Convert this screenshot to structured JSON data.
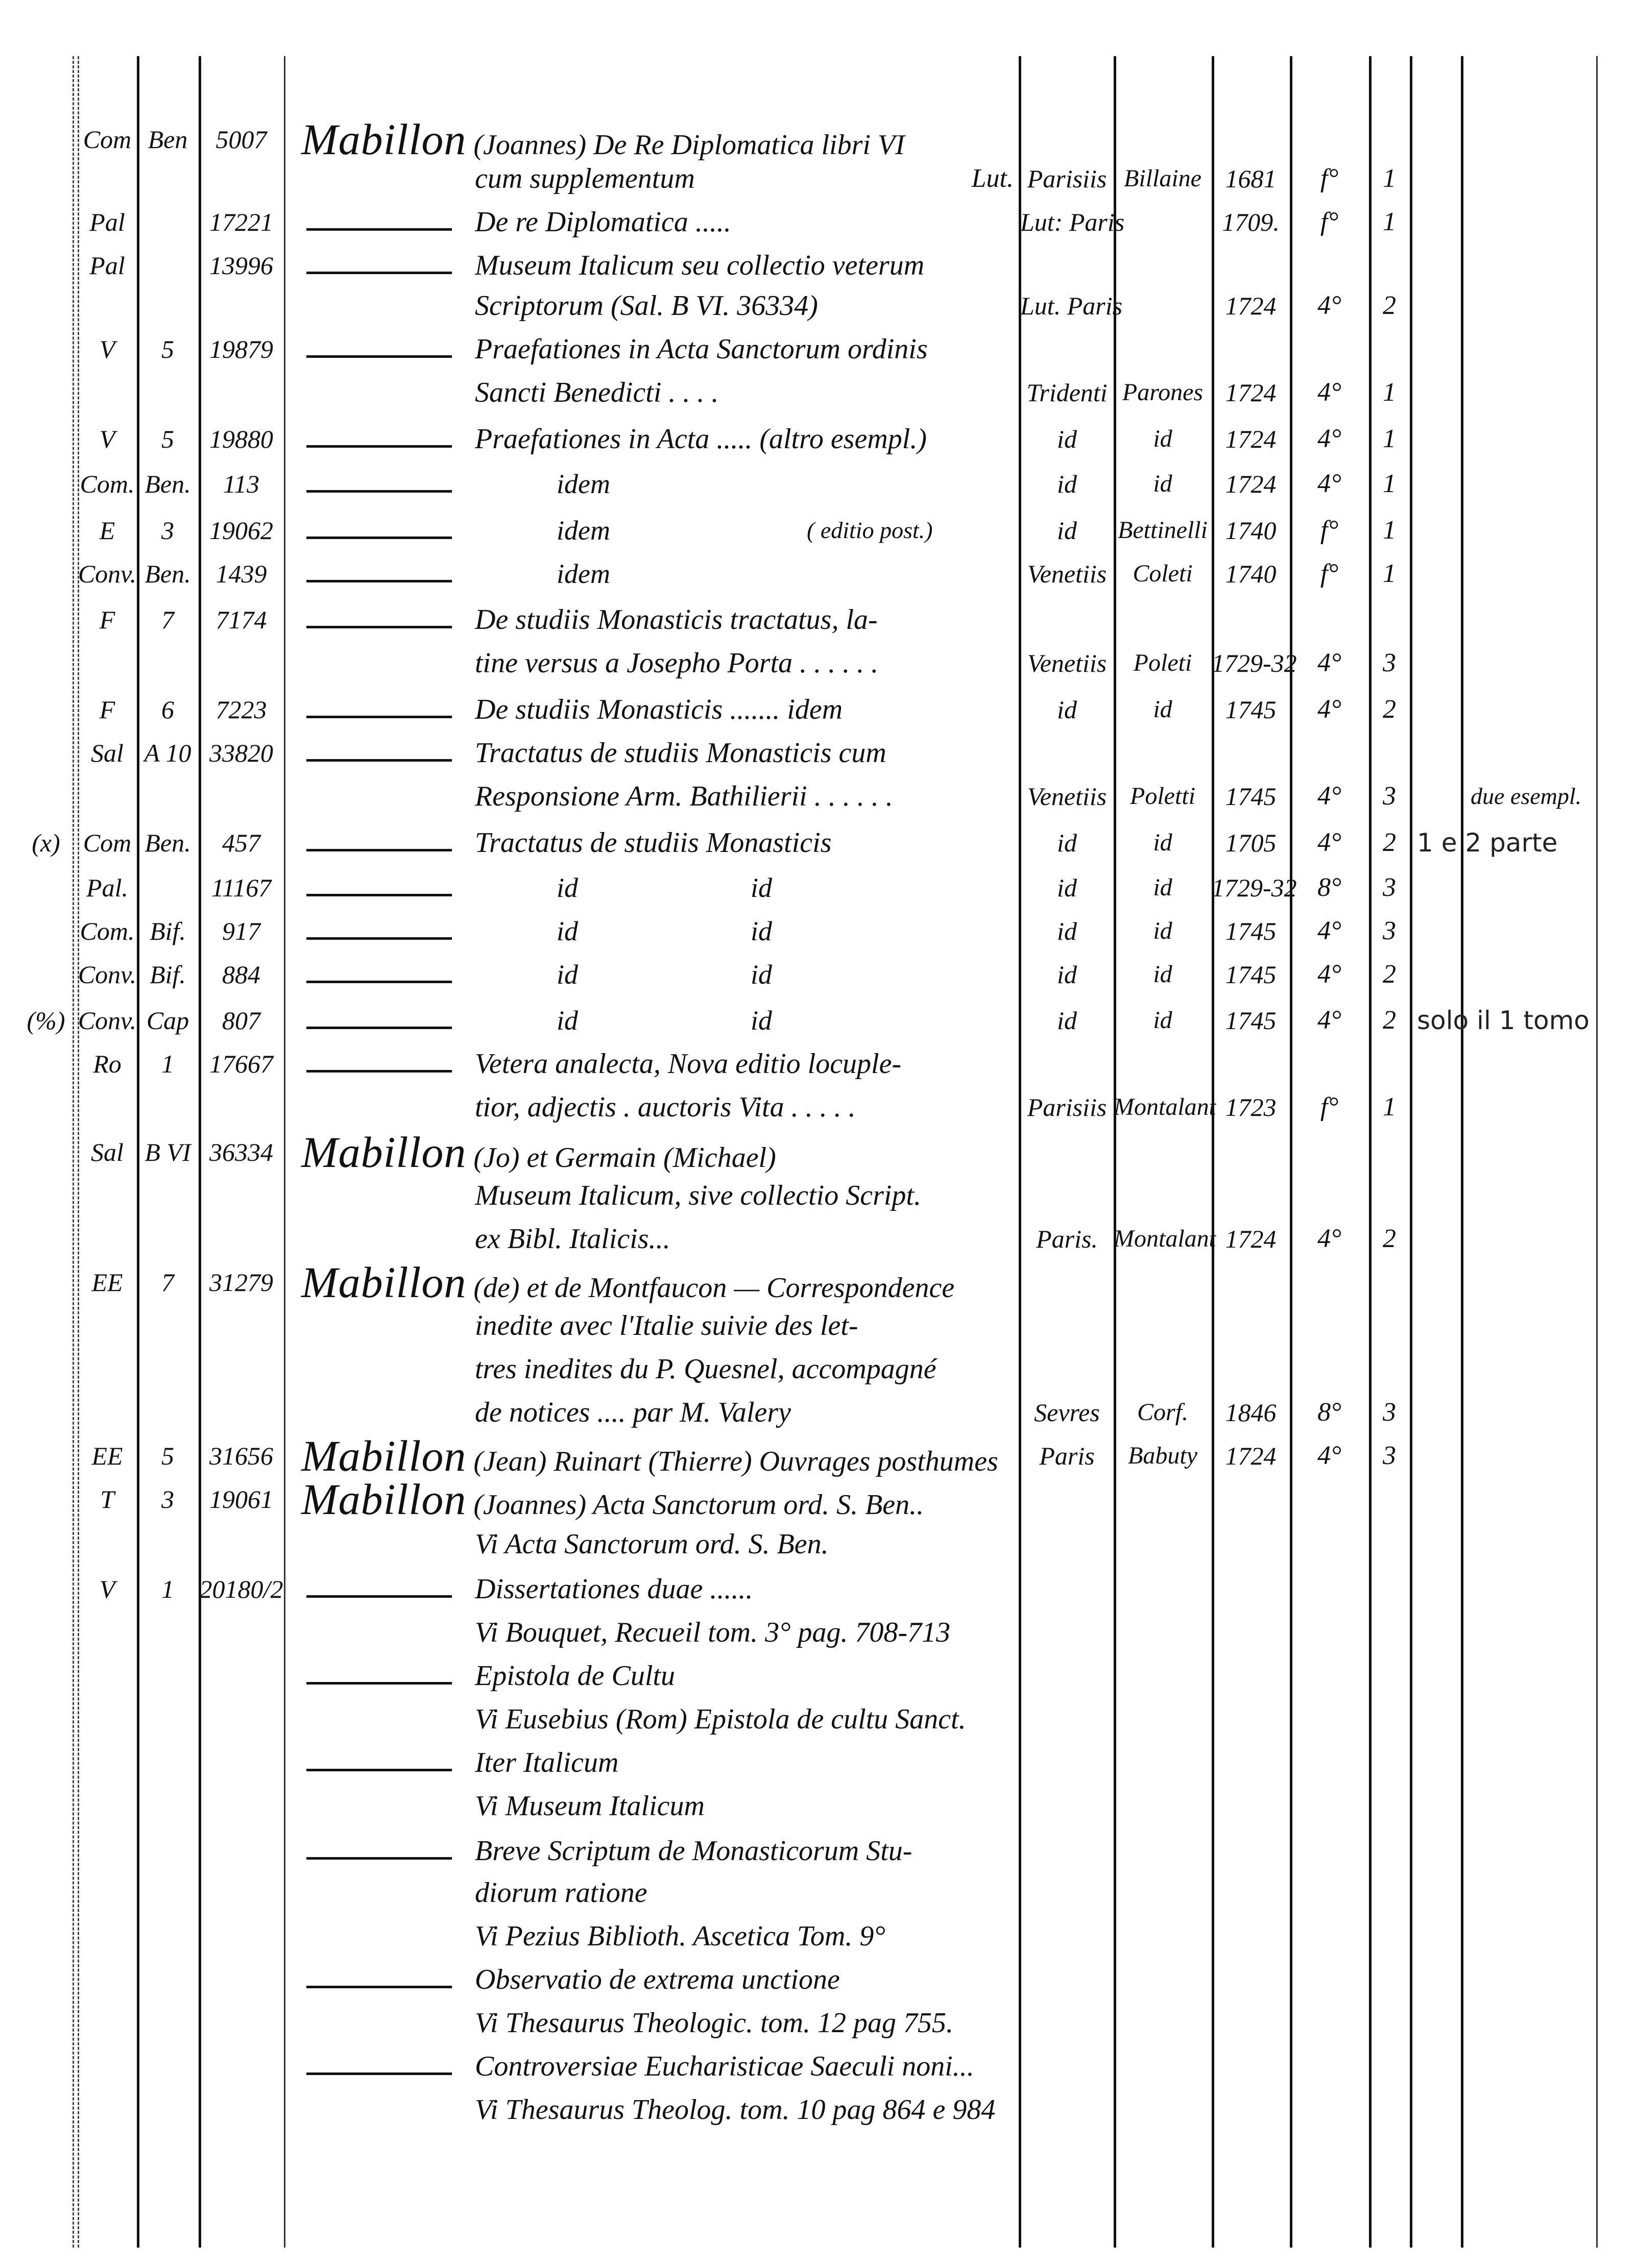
{
  "document": {
    "entries": [
      {
        "type": "heading",
        "shelf1": "Com",
        "shelf2": "Ben",
        "number": "5007",
        "author": "Mabillon",
        "title": "(Joannes) De Re Diplomatica libri VI"
      },
      {
        "type": "continuation",
        "title": "cum supplementum",
        "imprint": "Lut.",
        "place": "Parisiis",
        "printer": "Billaine",
        "year": "1681",
        "format": "f°",
        "vols": "1"
      },
      {
        "type": "dash",
        "shelf1": "Pal",
        "number": "17221",
        "title": "De re Diplomatica .....",
        "place": "Lut: Paris",
        "year": "1709.",
        "format": "f°",
        "vols": "1"
      },
      {
        "type": "dash",
        "shelf1": "Pal",
        "number": "13996",
        "title": "Museum Italicum seu collectio veterum"
      },
      {
        "type": "continuation",
        "title": "Scriptorum (Sal. B VI. 36334)",
        "place": "Lut. Paris",
        "year": "1724",
        "format": "4°",
        "vols": "2"
      },
      {
        "type": "dash",
        "shelf1": "V",
        "shelf2": "5",
        "number": "19879",
        "title": "Praefationes in Acta Sanctorum ordinis"
      },
      {
        "type": "continuation",
        "title": "Sancti Benedicti . . . .",
        "place": "Tridenti",
        "printer": "Parones",
        "year": "1724",
        "format": "4°",
        "vols": "1"
      },
      {
        "type": "dash",
        "shelf1": "V",
        "shelf2": "5",
        "number": "19880",
        "title": "Praefationes in Acta ..... (altro esempl.)",
        "place": "id",
        "printer": "id",
        "year": "1724",
        "format": "4°",
        "vols": "1"
      },
      {
        "type": "idem",
        "shelf1": "Com.",
        "shelf2": "Ben.",
        "number": "113",
        "title": "idem",
        "place": "id",
        "printer": "id",
        "year": "1724",
        "format": "4°",
        "vols": "1"
      },
      {
        "type": "idem",
        "shelf1": "E",
        "shelf2": "3",
        "number": "19062",
        "title": "idem",
        "sub": "( editio post.)",
        "place": "id",
        "printer": "Bettinelli",
        "year": "1740",
        "format": "f°",
        "vols": "1"
      },
      {
        "type": "idem",
        "shelf1": "Conv.",
        "shelf2": "Ben.",
        "number": "1439",
        "title": "idem",
        "place": "Venetiis",
        "printer": "Coleti",
        "year": "1740",
        "format": "f°",
        "vols": "1"
      },
      {
        "type": "dash",
        "shelf1": "F",
        "shelf2": "7",
        "number": "7174",
        "title": "De studiis Monasticis tractatus, la-"
      },
      {
        "type": "continuation",
        "title": "tine versus a Josepho Porta . . . . . .",
        "place": "Venetiis",
        "printer": "Poleti",
        "year": "1729-32",
        "format": "4°",
        "vols": "3"
      },
      {
        "type": "dash",
        "shelf1": "F",
        "shelf2": "6",
        "number": "7223",
        "title": "De studiis Monasticis ....... idem",
        "place": "id",
        "printer": "id",
        "year": "1745",
        "format": "4°",
        "vols": "2"
      },
      {
        "type": "dash",
        "shelf1": "Sal",
        "shelf2": "A 10",
        "number": "33820",
        "title": "Tractatus de studiis Monasticis cum"
      },
      {
        "type": "continuation",
        "title": "Responsione Arm. Bathilierii . . . . . .",
        "place": "Venetiis",
        "printer": "Poletti",
        "year": "1745",
        "format": "4°",
        "vols": "3",
        "remark": "due esempl."
      },
      {
        "type": "dash",
        "margin": "(x)",
        "shelf1": "Com",
        "shelf2": "Ben.",
        "number": "457",
        "title": "Tractatus de studiis Monasticis",
        "place": "id",
        "printer": "id",
        "year": "1705",
        "format": "4°",
        "vols": "2",
        "note": "1 e 2 parte"
      },
      {
        "type": "idid",
        "shelf1": "Pal.",
        "number": "11167",
        "title": "id",
        "title2": "id",
        "place": "id",
        "printer": "id",
        "year": "1729-32",
        "format": "8°",
        "vols": "3"
      },
      {
        "type": "idid",
        "shelf1": "Com.",
        "shelf2": "Bif.",
        "number": "917",
        "title": "id",
        "title2": "id",
        "place": "id",
        "printer": "id",
        "year": "1745",
        "format": "4°",
        "vols": "3"
      },
      {
        "type": "idid",
        "shelf1": "Conv.",
        "shelf2": "Bif.",
        "number": "884",
        "title": "id",
        "title2": "id",
        "place": "id",
        "printer": "id",
        "year": "1745",
        "format": "4°",
        "vols": "2"
      },
      {
        "type": "idid",
        "margin": "(%)",
        "shelf1": "Conv.",
        "shelf2": "Cap",
        "number": "807",
        "title": "id",
        "title2": "id",
        "place": "id",
        "printer": "id",
        "year": "1745",
        "format": "4°",
        "vols": "2",
        "note": "solo il 1 tomo"
      },
      {
        "type": "dash",
        "shelf1": "Ro",
        "shelf2": "1",
        "number": "17667",
        "title": "Vetera analecta, Nova editio locuple-"
      },
      {
        "type": "continuation",
        "title": "tior, adjectis . auctoris Vita . . . . .",
        "place": "Parisiis",
        "printer": "Montalant",
        "year": "1723",
        "format": "f°",
        "vols": "1"
      },
      {
        "type": "heading",
        "shelf1": "Sal",
        "shelf2": "B VI",
        "number": "36334",
        "author": "Mabillon",
        "title": "(Jo) et Germain (Michael)"
      },
      {
        "type": "continuation",
        "title": "Museum Italicum, sive collectio Script."
      },
      {
        "type": "continuation",
        "title": "ex Bibl. Italicis...",
        "place": "Paris.",
        "printer": "Montalant",
        "year": "1724",
        "format": "4°",
        "vols": "2"
      },
      {
        "type": "heading",
        "shelf1": "EE",
        "shelf2": "7",
        "number": "31279",
        "author": "Mabillon",
        "title": "(de) et de Montfaucon — Correspondence"
      },
      {
        "type": "continuation",
        "title": "inedite avec l'Italie suivie des let-"
      },
      {
        "type": "continuation",
        "title": "tres inedites du P. Quesnel, accompagné"
      },
      {
        "type": "continuation",
        "title": "de notices .... par M. Valery",
        "place": "Sevres",
        "printer": "Corf.",
        "year": "1846",
        "format": "8°",
        "vols": "3"
      },
      {
        "type": "heading",
        "shelf1": "EE",
        "shelf2": "5",
        "number": "31656",
        "author": "Mabillon",
        "title": "(Jean) Ruinart (Thierre) Ouvrages posthumes",
        "place": "Paris",
        "printer": "Babuty",
        "year": "1724",
        "format": "4°",
        "vols": "3"
      },
      {
        "type": "heading",
        "shelf1": "T",
        "shelf2": "3",
        "number": "19061",
        "author": "Mabillon",
        "title": "(Joannes) Acta Sanctorum ord. S. Ben.."
      },
      {
        "type": "continuation",
        "title": "Vi Acta Sanctorum ord. S. Ben."
      },
      {
        "type": "dash",
        "shelf1": "V",
        "shelf2": "1",
        "number": "20180/2",
        "title": "Dissertationes duae ......"
      },
      {
        "type": "continuation",
        "title": "Vi Bouquet, Recueil tom. 3° pag. 708-713"
      },
      {
        "type": "dash",
        "title": "Epistola de Cultu"
      },
      {
        "type": "continuation",
        "title": "Vi Eusebius (Rom) Epistola de cultu Sanct."
      },
      {
        "type": "dash",
        "title": "Iter Italicum"
      },
      {
        "type": "continuation",
        "title": "Vi Museum Italicum"
      },
      {
        "type": "dash",
        "title": "Breve Scriptum de Monasticorum Stu-"
      },
      {
        "type": "continuation",
        "title": "diorum ratione"
      },
      {
        "type": "continuation",
        "title": "Vi Pezius Biblioth. Ascetica Tom. 9°"
      },
      {
        "type": "dash",
        "title": "Observatio de extrema unctione"
      },
      {
        "type": "continuation",
        "title": "Vi Thesaurus Theologic. tom. 12 pag 755."
      },
      {
        "type": "dash",
        "title": "Controversiae Eucharisticae Saeculi noni..."
      },
      {
        "type": "continuation",
        "title": "Vi Thesaurus Theolog. tom. 10 pag 864 e 984"
      }
    ]
  },
  "colors": {
    "ink": "#111111",
    "paper": "#ffffff"
  }
}
